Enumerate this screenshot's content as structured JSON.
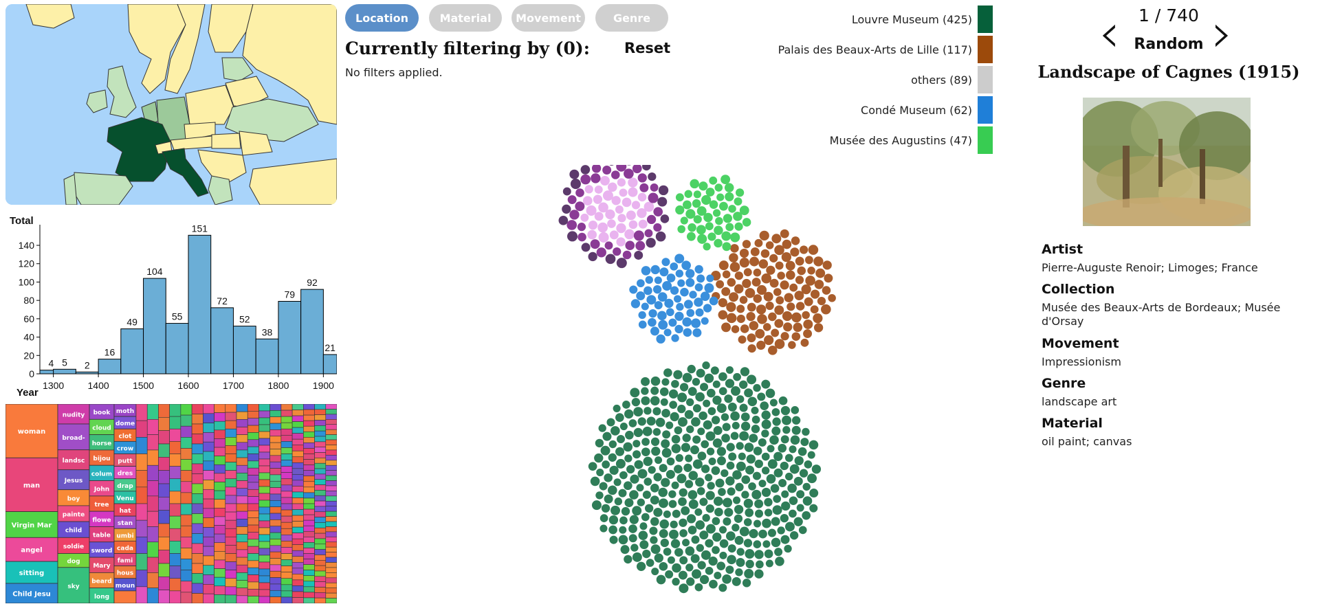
{
  "tabs": [
    {
      "label": "Location",
      "active": true
    },
    {
      "label": "Material",
      "active": false
    },
    {
      "label": "Movement",
      "active": false
    },
    {
      "label": "Genre",
      "active": false
    }
  ],
  "filter": {
    "title": "Currently filtering by (0):",
    "reset_label": "Reset",
    "status": "No filters applied."
  },
  "legend": [
    {
      "label": "Louvre Museum (425)",
      "color": "#06603a"
    },
    {
      "label": "Palais des Beaux-Arts de Lille (117)",
      "color": "#9c4a0b"
    },
    {
      "label": "others (89)",
      "color": "#cccccc"
    },
    {
      "label": "Condé Museum (62)",
      "color": "#1f7fd8"
    },
    {
      "label": "Musée des Augustins (47)",
      "color": "#38cc52"
    }
  ],
  "bubble_groups": [
    {
      "name": "Louvre Museum",
      "count": 425,
      "color": "#2f7d58"
    },
    {
      "name": "Palais des Beaux-Arts de Lille",
      "count": 117,
      "color": "#a85d2c"
    },
    {
      "name": "others",
      "count": 89,
      "colors": [
        "#5c3a6b",
        "#e9b3ef",
        "#8a3b95"
      ]
    },
    {
      "name": "Condé Museum",
      "count": 62,
      "color": "#3a8fdc"
    },
    {
      "name": "Musée des Augustins",
      "count": 47,
      "color": "#4cd264"
    }
  ],
  "map": {
    "sea_color": "#a9d4fa",
    "land_color": "#fdf0a8",
    "highlight_dark": "#06502d",
    "highlight_mid": "#9cc99a",
    "highlight_light": "#c2e3bc"
  },
  "chart_data": {
    "type": "bar",
    "ylabel": "Total",
    "xlabel": "Year",
    "x_ticks": [
      "1300",
      "1400",
      "1500",
      "1600",
      "1700",
      "1800",
      "1900"
    ],
    "y_ticks": [
      0,
      20,
      40,
      60,
      80,
      100,
      120,
      140
    ],
    "ylim": [
      0,
      155
    ],
    "xlim": [
      1270,
      1930
    ],
    "bin_width": 50,
    "bins": [
      {
        "start": 1270,
        "value": 4
      },
      {
        "start": 1300,
        "value": 5
      },
      {
        "start": 1350,
        "value": 2
      },
      {
        "start": 1400,
        "value": 16
      },
      {
        "start": 1450,
        "value": 49
      },
      {
        "start": 1500,
        "value": 104
      },
      {
        "start": 1550,
        "value": 55
      },
      {
        "start": 1600,
        "value": 151
      },
      {
        "start": 1650,
        "value": 72
      },
      {
        "start": 1700,
        "value": 52
      },
      {
        "start": 1750,
        "value": 38
      },
      {
        "start": 1800,
        "value": 79
      },
      {
        "start": 1850,
        "value": 92
      },
      {
        "start": 1900,
        "value": 21
      }
    ],
    "bar_color": "#6baed6"
  },
  "treemap": {
    "labels": [
      "woman",
      "man",
      "Virgin Mar",
      "angel",
      "sitting",
      "Child Jesu",
      "nudity",
      "broad-",
      "landsc",
      "Jesus",
      "boy",
      "painte",
      "child",
      "soldie",
      "dog",
      "sky",
      "book",
      "cloud",
      "horse",
      "bijou",
      "colum",
      "John",
      "tree",
      "flowe",
      "table",
      "sword",
      "Mary",
      "beard",
      "long",
      "moth",
      "dome",
      "clot",
      "crow",
      "putt",
      "dres",
      "drap",
      "Venu",
      "hat",
      "stan",
      "umbi",
      "cada",
      "fami",
      "hous",
      "moun"
    ],
    "colors": [
      "#f97a3c",
      "#e8467a",
      "#51d447",
      "#ec4a9a",
      "#19c1b8",
      "#2d88d6",
      "#cf3ca9",
      "#a04ec7",
      "#e0457c",
      "#6d58c6",
      "#f98a37",
      "#ee4e82",
      "#6a4fd1",
      "#ee3f68",
      "#75d53c",
      "#36c07d",
      "#9a48c8",
      "#62d451",
      "#3fbd7b",
      "#ee6a3a",
      "#2ab3bd",
      "#e94a8b",
      "#ef5d3b",
      "#d438c2",
      "#e0407f",
      "#6a52d5",
      "#e44b6c",
      "#ef8a3a",
      "#36c88a",
      "#9a45c6",
      "#7b55d5",
      "#f06e31",
      "#2d92d8",
      "#e15374",
      "#e153bf",
      "#48c98d",
      "#2cc0a4",
      "#e9435e",
      "#a451c8",
      "#ee9a38",
      "#f06638",
      "#e04877",
      "#ed7b3c",
      "#5754cf"
    ]
  },
  "artwork": {
    "counter": "1 / 740",
    "random_label": "Random",
    "prev_icon": "‹",
    "next_icon": "›",
    "title": "Landscape of Cagnes (1915)",
    "fields": [
      {
        "label": "Artist",
        "value": "Pierre-Auguste Renoir; Limoges; France"
      },
      {
        "label": "Collection",
        "value": "Musée des Beaux-Arts de Bordeaux; Musée d'Orsay"
      },
      {
        "label": "Movement",
        "value": "Impressionism"
      },
      {
        "label": "Genre",
        "value": "landscape art"
      },
      {
        "label": "Material",
        "value": "oil paint; canvas"
      }
    ]
  }
}
